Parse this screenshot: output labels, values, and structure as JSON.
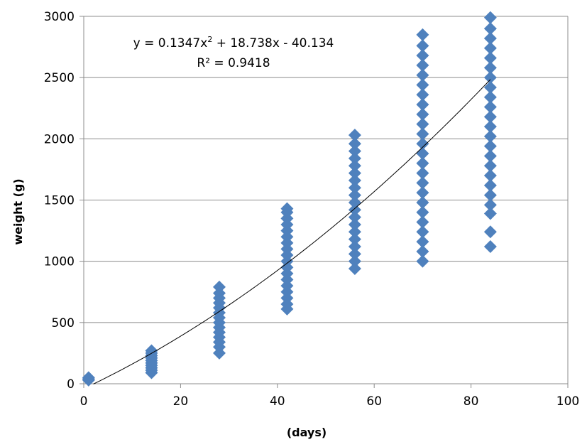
{
  "chart_data": {
    "type": "scatter",
    "xlabel": "(days)",
    "ylabel": "weight (g)",
    "xlim": [
      0,
      100
    ],
    "ylim": [
      0,
      3000
    ],
    "x_ticks": [
      0,
      20,
      40,
      60,
      80,
      100
    ],
    "y_ticks": [
      0,
      500,
      1000,
      1500,
      2000,
      2500,
      3000
    ],
    "grid": "horizontal",
    "legend": "none",
    "marker": "diamond",
    "marker_color": "#4f81bd",
    "series": [
      {
        "groups": [
          {
            "x": 1,
            "y": [
              30,
              40,
              50
            ]
          },
          {
            "x": 14,
            "y": [
              90,
              110,
              130,
              150,
              170,
              190,
              210,
              230,
              250,
              270
            ]
          },
          {
            "x": 28,
            "y": [
              250,
              300,
              340,
              380,
              420,
              460,
              500,
              540,
              580,
              620,
              660,
              700,
              740,
              790
            ]
          },
          {
            "x": 42,
            "y": [
              610,
              650,
              700,
              750,
              800,
              850,
              900,
              950,
              1000,
              1050,
              1100,
              1150,
              1200,
              1250,
              1300,
              1350,
              1400,
              1430
            ]
          },
          {
            "x": 56,
            "y": [
              940,
              1000,
              1060,
              1120,
              1180,
              1240,
              1300,
              1360,
              1420,
              1480,
              1540,
              1600,
              1660,
              1720,
              1780,
              1840,
              1900,
              1960,
              2030
            ]
          },
          {
            "x": 70,
            "y": [
              1000,
              1080,
              1160,
              1240,
              1320,
              1400,
              1480,
              1560,
              1640,
              1720,
              1800,
              1880,
              1960,
              2040,
              2120,
              2200,
              2280,
              2360,
              2440,
              2520,
              2600,
              2680,
              2760,
              2850
            ]
          },
          {
            "x": 84,
            "y": [
              1120,
              1240,
              1390,
              1460,
              1540,
              1620,
              1700,
              1780,
              1860,
              1940,
              2020,
              2100,
              2180,
              2260,
              2340,
              2420,
              2500,
              2580,
              2660,
              2740,
              2820,
              2900,
              2990
            ]
          }
        ]
      }
    ],
    "trendline": {
      "type": "polynomial",
      "coefficients": [
        0.1347,
        18.738,
        -40.134
      ],
      "x_range": [
        2,
        84
      ],
      "color": "#000000"
    },
    "annotation": {
      "equation_prefix": "y = 0.1347x",
      "equation_sup": "2",
      "equation_suffix": " + 18.738x - 40.134",
      "r_squared": "R² = 0.9418"
    }
  }
}
